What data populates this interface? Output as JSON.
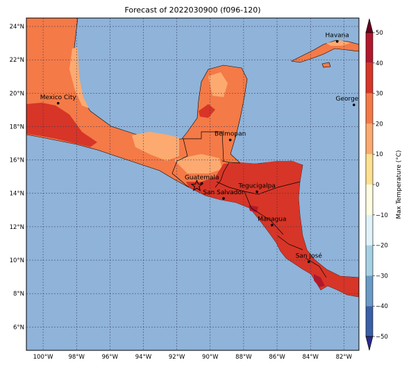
{
  "title": "Forecast of 2022030900 (f096-120)",
  "colors": {
    "ocean": "#8fb3d9",
    "land_25": "#f47a47",
    "land_20": "#fcaa70",
    "land_30": "#d73527",
    "land_35": "#b2182b",
    "border": "#000000",
    "grid": "#333355"
  },
  "lat_ticks": [
    "24°N",
    "22°N",
    "20°N",
    "18°N",
    "16°N",
    "14°N",
    "12°N",
    "10°N",
    "8°N",
    "6°N"
  ],
  "lon_ticks": [
    "100°W",
    "98°W",
    "96°W",
    "94°W",
    "92°W",
    "90°W",
    "88°W",
    "86°W",
    "84°W",
    "82°W"
  ],
  "cities": [
    {
      "name": "Havana",
      "lon": -82.4,
      "lat": 23.1
    },
    {
      "name": "Mexico City",
      "lon": -99.1,
      "lat": 19.4
    },
    {
      "name": "George Tow",
      "lon": -81.4,
      "lat": 19.3
    },
    {
      "name": "Belmopan",
      "lon": -88.8,
      "lat": 17.2
    },
    {
      "name": "Guatemala",
      "lon": -90.5,
      "lat": 14.6
    },
    {
      "name": "Tegucigalpa",
      "lon": -87.2,
      "lat": 14.1
    },
    {
      "name": "San Salvador",
      "lon": -89.2,
      "lat": 13.7
    },
    {
      "name": "Managua",
      "lon": -86.3,
      "lat": 12.1
    },
    {
      "name": "San José",
      "lon": -84.1,
      "lat": 9.9
    }
  ],
  "marker": {
    "name": "star-marker",
    "lon": -90.8,
    "lat": 14.45
  },
  "colorbar": {
    "label": "Max Temperature (°C)",
    "ticks": [
      "50",
      "40",
      "30",
      "20",
      "10",
      "0",
      "−10",
      "−20",
      "−30",
      "−40",
      "−50"
    ],
    "colors": [
      "#67001f",
      "#b2182b",
      "#d73527",
      "#f47a47",
      "#fcaa70",
      "#fee090",
      "#fffde0",
      "#e0f3f8",
      "#a6d0e4",
      "#6a9bc7",
      "#3b5fa8",
      "#2a2a8c"
    ]
  }
}
